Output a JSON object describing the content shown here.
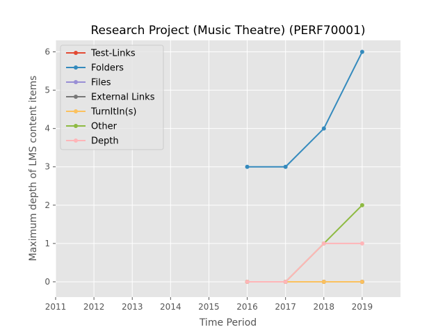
{
  "chart_data": {
    "type": "line",
    "title": "Research Project (Music Theatre) (PERF70001)",
    "xlabel": "Time Period",
    "ylabel": "Maximum depth of LMS content items",
    "x_ticks": [
      "2011",
      "2012",
      "2013",
      "2014",
      "2015",
      "2016",
      "2017",
      "2018",
      "2019"
    ],
    "y_ticks": [
      "0",
      "1",
      "2",
      "3",
      "4",
      "5",
      "6"
    ],
    "xlim": [
      2011,
      2020
    ],
    "ylim": [
      -0.4,
      6.3
    ],
    "grid": true,
    "legend_position": "top-left",
    "series": [
      {
        "name": "Test-Links",
        "color": "#E24A33",
        "x": [
          2016,
          2017,
          2018,
          2019
        ],
        "y": [
          0,
          0,
          0,
          0
        ]
      },
      {
        "name": "Folders",
        "color": "#348ABD",
        "x": [
          2016,
          2017,
          2018,
          2019
        ],
        "y": [
          3,
          3,
          4,
          6
        ]
      },
      {
        "name": "Files",
        "color": "#988ED5",
        "x": [
          2016,
          2017,
          2018,
          2019
        ],
        "y": [
          0,
          0,
          0,
          0
        ]
      },
      {
        "name": "External Links",
        "color": "#777777",
        "x": [
          2016,
          2017,
          2018,
          2019
        ],
        "y": [
          0,
          0,
          0,
          0
        ]
      },
      {
        "name": "TurnItIn(s)",
        "color": "#FBC15E",
        "x": [
          2016,
          2017,
          2018,
          2019
        ],
        "y": [
          0,
          0,
          0,
          0
        ]
      },
      {
        "name": "Other",
        "color": "#8EBA42",
        "x": [
          2016,
          2017,
          2018,
          2019
        ],
        "y": [
          0,
          0,
          1,
          2
        ]
      },
      {
        "name": "Depth",
        "color": "#FFB5B8",
        "x": [
          2016,
          2017,
          2018,
          2019
        ],
        "y": [
          0,
          0,
          1,
          1
        ]
      }
    ]
  }
}
